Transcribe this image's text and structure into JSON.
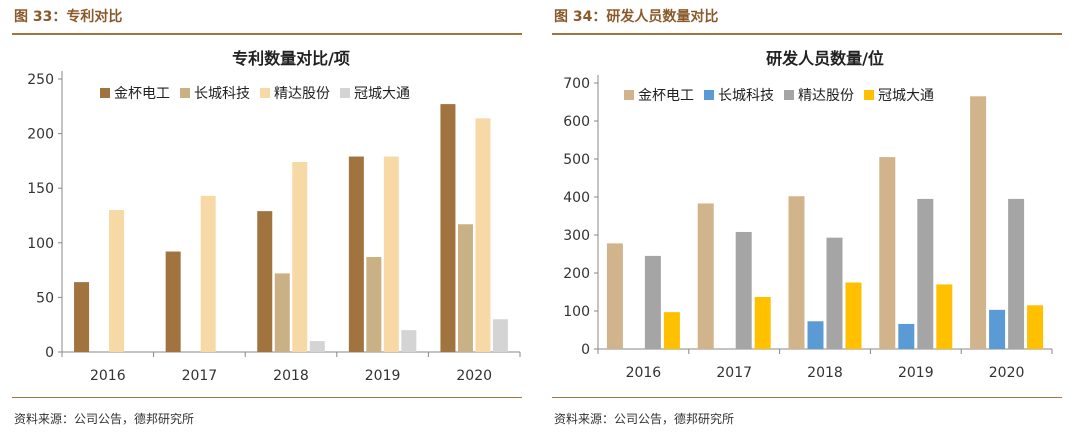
{
  "figures": [
    {
      "fig_title": "图 33：专利对比",
      "source": "资料来源：公司公告，德邦研究所"
    },
    {
      "fig_title": "图 34：研发人员数量对比",
      "source": "资料来源：公司公告，德邦研究所"
    }
  ],
  "chart_data": [
    {
      "type": "bar",
      "title": "专利数量对比/项",
      "xlabel": "",
      "ylabel": "",
      "categories": [
        "2016",
        "2017",
        "2018",
        "2019",
        "2020"
      ],
      "ylim": [
        0,
        250
      ],
      "yticks": [
        0,
        50,
        100,
        150,
        200,
        250
      ],
      "grid": false,
      "legend_position": "top",
      "series": [
        {
          "name": "金杯电工",
          "color": "#a0733f",
          "values": [
            64,
            92,
            129,
            179,
            227
          ]
        },
        {
          "name": "长城科技",
          "color": "#c9b185",
          "values": [
            0,
            0,
            72,
            87,
            117
          ]
        },
        {
          "name": "精达股份",
          "color": "#f7d9a6",
          "values": [
            130,
            143,
            174,
            179,
            214
          ]
        },
        {
          "name": "冠城大通",
          "color": "#d4d4d4",
          "values": [
            0,
            0,
            10,
            20,
            30
          ]
        }
      ]
    },
    {
      "type": "bar",
      "title": "研发人员数量/位",
      "xlabel": "",
      "ylabel": "",
      "categories": [
        "2016",
        "2017",
        "2018",
        "2019",
        "2020"
      ],
      "ylim": [
        0,
        700
      ],
      "yticks": [
        0,
        100,
        200,
        300,
        400,
        500,
        600,
        700
      ],
      "grid": false,
      "legend_position": "top",
      "series": [
        {
          "name": "金杯电工",
          "color": "#d2b48c",
          "values": [
            278,
            383,
            402,
            505,
            665
          ]
        },
        {
          "name": "长城科技",
          "color": "#5b9bd5",
          "values": [
            0,
            0,
            73,
            66,
            103
          ]
        },
        {
          "name": "精达股份",
          "color": "#a5a5a5",
          "values": [
            245,
            308,
            293,
            395,
            395
          ]
        },
        {
          "name": "冠城大通",
          "color": "#ffc000",
          "values": [
            97,
            137,
            175,
            170,
            115
          ]
        }
      ]
    }
  ]
}
